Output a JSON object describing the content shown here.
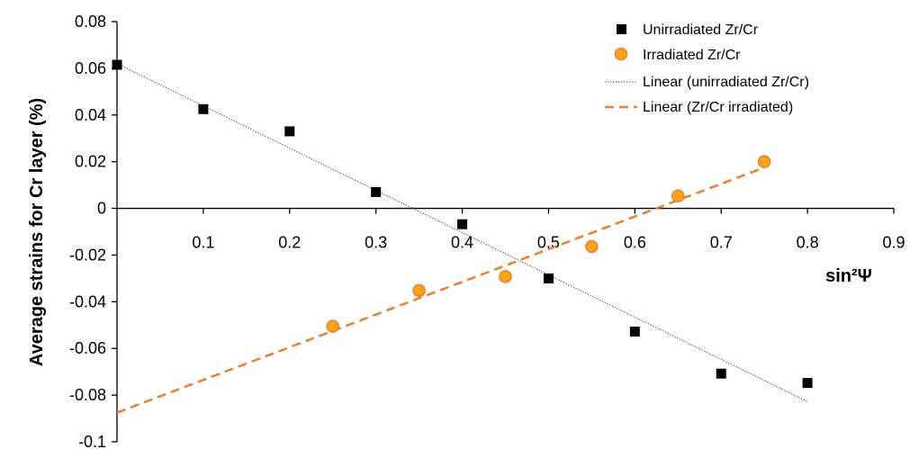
{
  "chart_data": {
    "type": "scatter",
    "xlabel": "sin²Ψ",
    "ylabel": "Average strains for Cr layer  (%)",
    "xlim": [
      0,
      0.9
    ],
    "ylim": [
      -0.1,
      0.08
    ],
    "x_ticks": [
      "0.1",
      "0.2",
      "0.3",
      "0.4",
      "0.5",
      "0.6",
      "0.7",
      "0.8",
      "0.9"
    ],
    "y_ticks": [
      "0.08",
      "0.06",
      "0.04",
      "0.02",
      "0",
      "-0.02",
      "-0.04",
      "-0.06",
      "-0.08",
      "-0.1"
    ],
    "grid": false,
    "legend_position": "top-right",
    "series": [
      {
        "name": "Unirradiated Zr/Cr",
        "marker": "square",
        "color": "#000000",
        "x": [
          0.0,
          0.1,
          0.2,
          0.3,
          0.4,
          0.5,
          0.6,
          0.7,
          0.8
        ],
        "y": [
          0.0615,
          0.0425,
          0.033,
          0.007,
          -0.0068,
          -0.03,
          -0.0528,
          -0.0708,
          -0.0748
        ]
      },
      {
        "name": "Irradiated Zr/Cr",
        "marker": "circle",
        "color": "#F4A51C",
        "x": [
          0.25,
          0.35,
          0.45,
          0.55,
          0.65,
          0.75
        ],
        "y": [
          -0.0505,
          -0.0352,
          -0.0292,
          -0.0163,
          0.0053,
          0.02
        ]
      }
    ],
    "trendlines": [
      {
        "name": "Linear (unirradiated Zr/Cr)",
        "style": "dotted",
        "color": "#555555",
        "x": [
          0.0,
          0.8
        ],
        "y": [
          0.062,
          -0.0828
        ]
      },
      {
        "name": "Linear (Zr/Cr irradiated)",
        "style": "dashed",
        "color": "#ED7D31",
        "x": [
          0.0,
          0.75
        ],
        "y": [
          -0.0875,
          0.0175
        ]
      }
    ]
  }
}
